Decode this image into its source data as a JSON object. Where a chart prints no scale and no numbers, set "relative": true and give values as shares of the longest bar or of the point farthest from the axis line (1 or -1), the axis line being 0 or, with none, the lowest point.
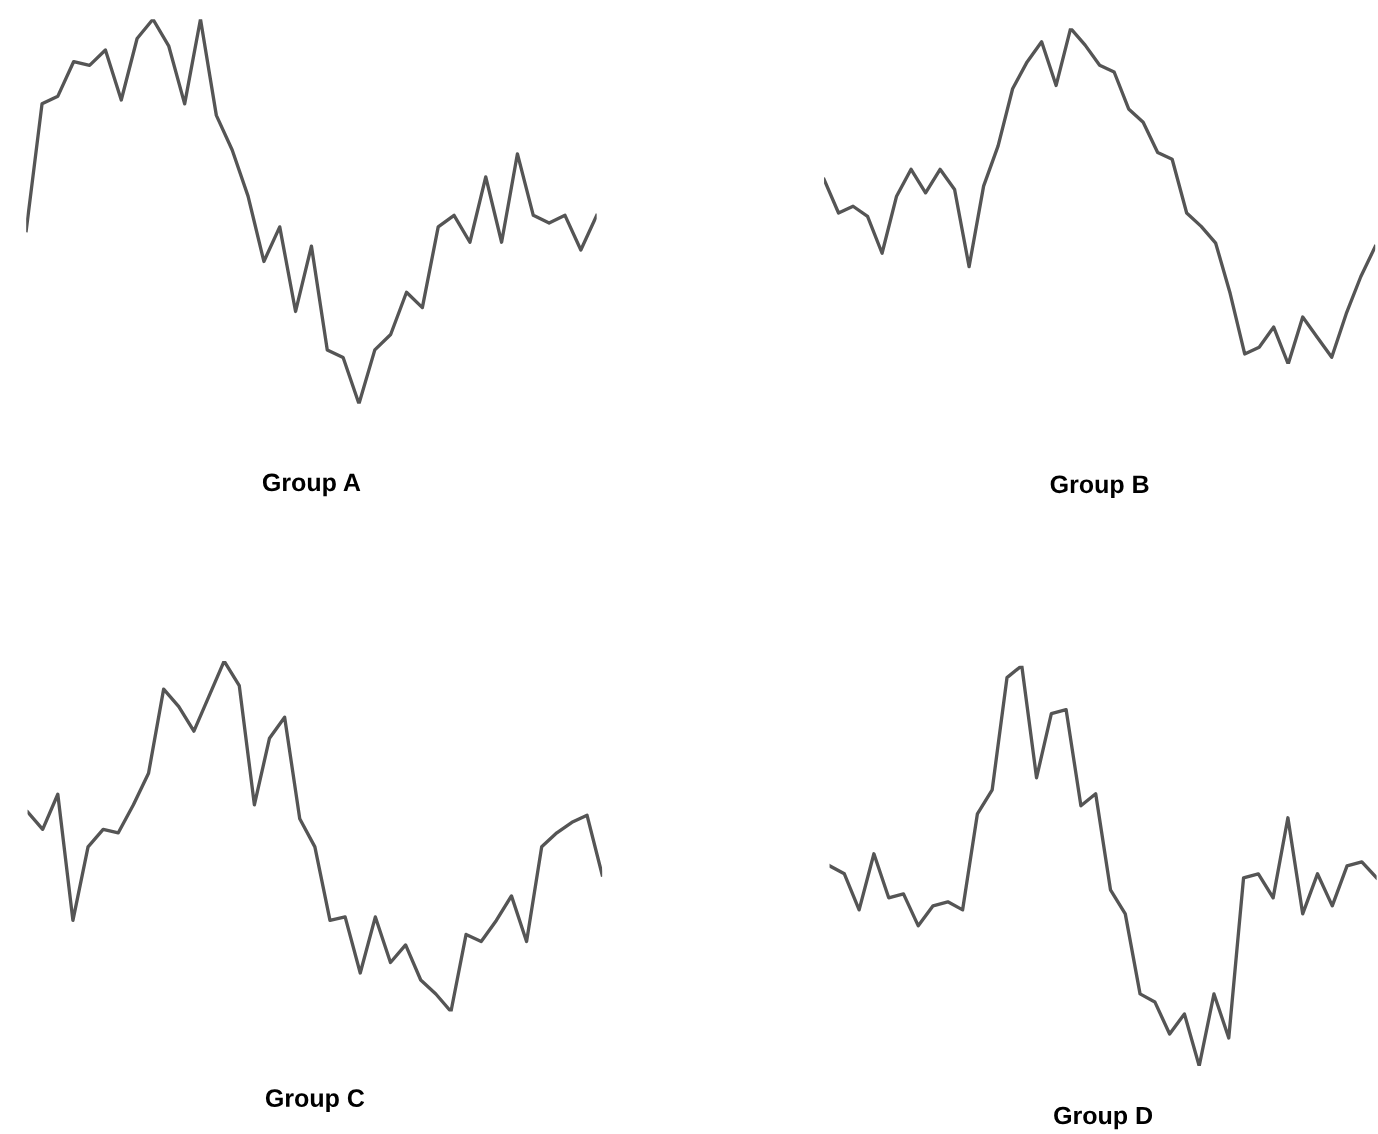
{
  "chart_data": [
    {
      "type": "line",
      "relative": true,
      "xlabel": "Group A",
      "color": "#555555",
      "categories": [
        null,
        null,
        null,
        null,
        null,
        null,
        null,
        null,
        null,
        null,
        null,
        null,
        null,
        null,
        null,
        null,
        null,
        null,
        null,
        null,
        null,
        null,
        null,
        null,
        null,
        null,
        null,
        null,
        null,
        null,
        null,
        null,
        null,
        null,
        null,
        null,
        null
      ],
      "values": [
        0.45,
        0.78,
        0.8,
        0.89,
        0.88,
        0.92,
        0.79,
        0.95,
        1.0,
        0.93,
        0.78,
        1.0,
        0.75,
        0.66,
        0.54,
        0.37,
        0.46,
        0.24,
        0.41,
        0.14,
        0.12,
        0,
        0.14,
        0.18,
        0.29,
        0.25,
        0.46,
        0.49,
        0.42,
        0.59,
        0.42,
        0.65,
        0.49,
        0.47,
        0.49,
        0.4,
        0.49
      ]
    },
    {
      "type": "line",
      "relative": true,
      "xlabel": "Group B",
      "color": "#555555",
      "categories": [
        null,
        null,
        null,
        null,
        null,
        null,
        null,
        null,
        null,
        null,
        null,
        null,
        null,
        null,
        null,
        null,
        null,
        null,
        null,
        null,
        null,
        null,
        null,
        null,
        null,
        null,
        null,
        null,
        null,
        null,
        null,
        null,
        null,
        null,
        null,
        null,
        null,
        null,
        null
      ],
      "values": [
        0.55,
        0.45,
        0.47,
        0.44,
        0.33,
        0.5,
        0.58,
        0.51,
        0.58,
        0.52,
        0.29,
        0.53,
        0.65,
        0.82,
        0.9,
        0.96,
        0.83,
        1.0,
        0.95,
        0.89,
        0.87,
        0.76,
        0.72,
        0.63,
        0.61,
        0.45,
        0.41,
        0.36,
        0.21,
        0.03,
        0.05,
        0.11,
        0,
        0.14,
        0.08,
        0.02,
        0.15,
        0.26,
        0.35
      ]
    },
    {
      "type": "line",
      "relative": true,
      "xlabel": "Group C",
      "color": "#555555",
      "categories": [
        null,
        null,
        null,
        null,
        null,
        null,
        null,
        null,
        null,
        null,
        null,
        null,
        null,
        null,
        null,
        null,
        null,
        null,
        null,
        null,
        null,
        null,
        null,
        null,
        null,
        null,
        null,
        null,
        null,
        null,
        null,
        null,
        null,
        null,
        null,
        null,
        null,
        null,
        null
      ],
      "values": [
        0.57,
        0.52,
        0.62,
        0.26,
        0.47,
        0.52,
        0.51,
        0.59,
        0.68,
        0.92,
        0.87,
        0.8,
        0.9,
        1.0,
        0.93,
        0.59,
        0.78,
        0.84,
        0.55,
        0.47,
        0.26,
        0.27,
        0.11,
        0.27,
        0.14,
        0.19,
        0.09,
        0.05,
        0,
        0.22,
        0.2,
        0.26,
        0.33,
        0.2,
        0.47,
        0.51,
        0.54,
        0.56,
        0.39
      ]
    },
    {
      "type": "line",
      "relative": true,
      "xlabel": "Group D",
      "color": "#555555",
      "categories": [
        null,
        null,
        null,
        null,
        null,
        null,
        null,
        null,
        null,
        null,
        null,
        null,
        null,
        null,
        null,
        null,
        null,
        null,
        null,
        null,
        null,
        null,
        null,
        null,
        null,
        null,
        null,
        null,
        null,
        null,
        null,
        null,
        null,
        null,
        null,
        null,
        null,
        null
      ],
      "values": [
        0.5,
        0.48,
        0.39,
        0.53,
        0.42,
        0.43,
        0.35,
        0.4,
        0.41,
        0.39,
        0.63,
        0.69,
        0.97,
        1.0,
        0.72,
        0.88,
        0.89,
        0.65,
        0.68,
        0.44,
        0.38,
        0.18,
        0.16,
        0.08,
        0.13,
        0,
        0.18,
        0.07,
        0.47,
        0.48,
        0.42,
        0.62,
        0.38,
        0.48,
        0.4,
        0.5,
        0.51,
        0.47
      ]
    }
  ]
}
